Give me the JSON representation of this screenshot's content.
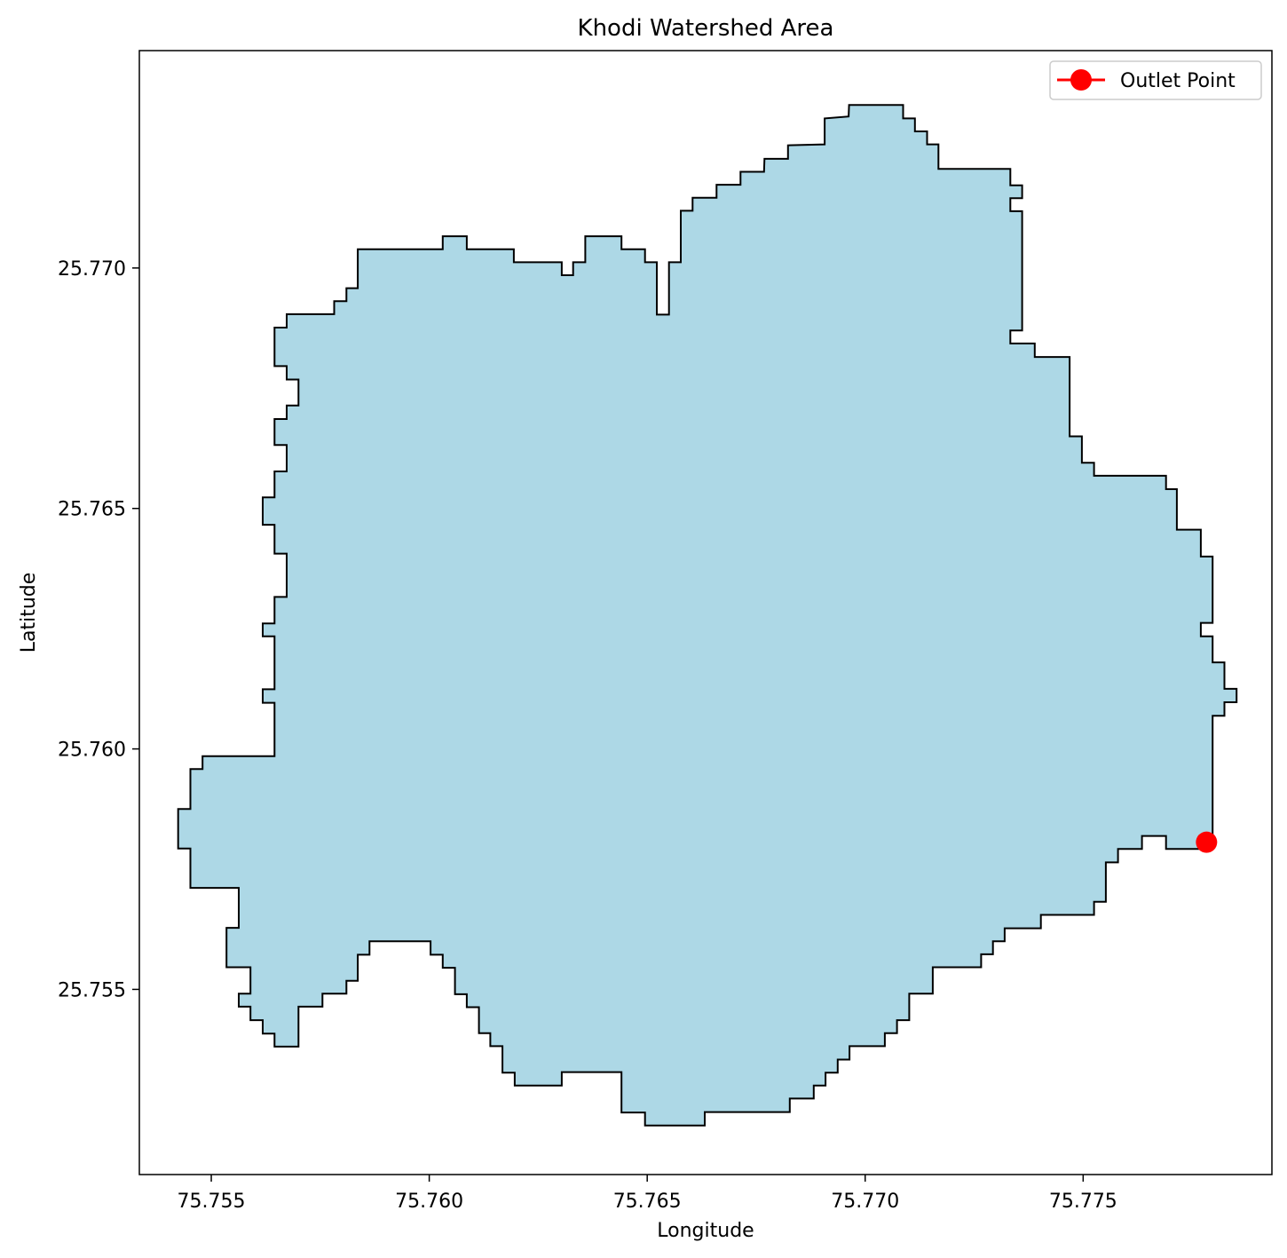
{
  "chart_data": {
    "type": "map",
    "title": "Khodi Watershed Area",
    "xlabel": "Longitude",
    "ylabel": "Latitude",
    "xlim": [
      75.75335,
      75.77933
    ],
    "ylim": [
      25.75115,
      25.77452
    ],
    "xticks": [
      75.755,
      75.76,
      75.765,
      75.77,
      75.775
    ],
    "xtick_labels": [
      "75.755",
      "75.760",
      "75.765",
      "75.770",
      "75.775"
    ],
    "yticks": [
      25.755,
      25.76,
      25.765,
      25.77
    ],
    "ytick_labels": [
      "25.755",
      "25.760",
      "25.765",
      "25.770"
    ],
    "grid": false,
    "legend": {
      "placement": "top-right",
      "entries": [
        {
          "label": "Outlet Point",
          "color": "#ff0000",
          "marker": "circle"
        }
      ]
    },
    "watershed": {
      "fill": "#add8e6",
      "edge": "#000000"
    },
    "outlet_point": {
      "label": "Outlet Point",
      "lon": 75.77783,
      "lat": 25.75806,
      "color": "#ff0000"
    },
    "boundary": [
      [
        75.76963,
        25.77339
      ],
      [
        75.76962,
        25.77315
      ],
      [
        75.76907,
        25.77311
      ],
      [
        75.76907,
        25.77257
      ],
      [
        75.76823,
        25.77255
      ],
      [
        75.76823,
        25.77227
      ],
      [
        75.76769,
        25.77227
      ],
      [
        75.76768,
        25.772
      ],
      [
        75.76714,
        25.772
      ],
      [
        75.76714,
        25.77173
      ],
      [
        75.76659,
        25.77173
      ],
      [
        75.76659,
        25.77146
      ],
      [
        75.76604,
        25.77146
      ],
      [
        75.76604,
        25.77119
      ],
      [
        75.76577,
        25.77119
      ],
      [
        75.76577,
        25.77012
      ],
      [
        75.7655,
        25.77012
      ],
      [
        75.7655,
        25.76903
      ],
      [
        75.76522,
        25.76903
      ],
      [
        75.76522,
        25.77012
      ],
      [
        75.76495,
        25.77012
      ],
      [
        75.76495,
        25.77039
      ],
      [
        75.76441,
        25.77039
      ],
      [
        75.76441,
        25.77066
      ],
      [
        75.76358,
        25.77066
      ],
      [
        75.76358,
        25.77012
      ],
      [
        75.7633,
        25.77012
      ],
      [
        75.7633,
        25.76985
      ],
      [
        75.76304,
        25.76985
      ],
      [
        75.76304,
        25.77012
      ],
      [
        75.76194,
        25.77012
      ],
      [
        75.76194,
        25.77039
      ],
      [
        75.76086,
        25.77039
      ],
      [
        75.76086,
        25.77066
      ],
      [
        75.76031,
        25.77066
      ],
      [
        75.76031,
        25.77039
      ],
      [
        75.75836,
        25.77039
      ],
      [
        75.75836,
        25.76958
      ],
      [
        75.7581,
        25.76958
      ],
      [
        75.7581,
        25.76931
      ],
      [
        75.75782,
        25.76931
      ],
      [
        75.75782,
        25.76904
      ],
      [
        75.75673,
        25.76904
      ],
      [
        75.75673,
        25.76876
      ],
      [
        75.75645,
        25.76876
      ],
      [
        75.75645,
        25.76796
      ],
      [
        75.75673,
        25.76796
      ],
      [
        75.75673,
        25.76768
      ],
      [
        75.757,
        25.76768
      ],
      [
        75.757,
        25.76714
      ],
      [
        75.75673,
        25.76714
      ],
      [
        75.75673,
        25.76686
      ],
      [
        75.75645,
        25.76686
      ],
      [
        75.75645,
        25.76632
      ],
      [
        75.75673,
        25.76632
      ],
      [
        75.75673,
        25.76577
      ],
      [
        75.75645,
        25.76577
      ],
      [
        75.75645,
        25.76523
      ],
      [
        75.75618,
        25.76523
      ],
      [
        75.75618,
        25.76466
      ],
      [
        75.75645,
        25.76466
      ],
      [
        75.75645,
        25.76406
      ],
      [
        75.75673,
        25.76406
      ],
      [
        75.75673,
        25.76316
      ],
      [
        75.75645,
        25.76316
      ],
      [
        75.75645,
        25.76261
      ],
      [
        75.75618,
        25.76261
      ],
      [
        75.75618,
        25.76234
      ],
      [
        75.75645,
        25.76234
      ],
      [
        75.75645,
        25.76124
      ],
      [
        75.75618,
        25.76124
      ],
      [
        75.75618,
        25.76096
      ],
      [
        75.75645,
        25.76096
      ],
      [
        75.75645,
        25.75985
      ],
      [
        75.7548,
        25.75985
      ],
      [
        75.7548,
        25.75958
      ],
      [
        75.75452,
        25.75958
      ],
      [
        75.75452,
        25.75875
      ],
      [
        75.75424,
        25.75875
      ],
      [
        75.75424,
        25.75793
      ],
      [
        75.75452,
        25.75793
      ],
      [
        75.75452,
        25.75711
      ],
      [
        75.75563,
        25.75711
      ],
      [
        75.75563,
        25.75628
      ],
      [
        75.75535,
        25.75628
      ],
      [
        75.75535,
        25.75546
      ],
      [
        75.7559,
        25.75546
      ],
      [
        75.7559,
        25.75491
      ],
      [
        75.75563,
        25.75491
      ],
      [
        75.75563,
        25.75464
      ],
      [
        75.7559,
        25.75464
      ],
      [
        75.7559,
        25.75436
      ],
      [
        75.75618,
        25.75436
      ],
      [
        75.75618,
        25.75408
      ],
      [
        75.75645,
        25.75408
      ],
      [
        75.75645,
        25.75381
      ],
      [
        75.757,
        25.75381
      ],
      [
        75.757,
        25.75464
      ],
      [
        75.75755,
        25.75464
      ],
      [
        75.75755,
        25.75491
      ],
      [
        75.7581,
        25.75491
      ],
      [
        75.7581,
        25.75518
      ],
      [
        75.75836,
        25.75518
      ],
      [
        75.75836,
        25.75572
      ],
      [
        75.75863,
        25.75572
      ],
      [
        75.75863,
        25.756
      ],
      [
        75.76003,
        25.756
      ],
      [
        75.76003,
        25.75572
      ],
      [
        75.76031,
        25.75572
      ],
      [
        75.76031,
        25.75545
      ],
      [
        75.76059,
        25.75545
      ],
      [
        75.76059,
        25.7549
      ],
      [
        75.76086,
        25.7549
      ],
      [
        75.76086,
        25.75463
      ],
      [
        75.76114,
        25.75463
      ],
      [
        75.76114,
        25.75409
      ],
      [
        75.7614,
        25.75409
      ],
      [
        75.7614,
        25.75382
      ],
      [
        75.76168,
        25.75382
      ],
      [
        75.76168,
        25.75327
      ],
      [
        75.76196,
        25.75327
      ],
      [
        75.76196,
        25.753
      ],
      [
        75.76304,
        25.753
      ],
      [
        75.76304,
        25.75328
      ],
      [
        75.76441,
        25.75328
      ],
      [
        75.76441,
        25.75244
      ],
      [
        75.76495,
        25.75244
      ],
      [
        75.76495,
        25.75217
      ],
      [
        75.76632,
        25.75217
      ],
      [
        75.76632,
        25.75245
      ],
      [
        75.76827,
        25.75245
      ],
      [
        75.76827,
        25.75273
      ],
      [
        75.76882,
        25.75273
      ],
      [
        75.76882,
        25.753
      ],
      [
        75.76909,
        25.753
      ],
      [
        75.76909,
        25.75327
      ],
      [
        75.76937,
        25.75327
      ],
      [
        75.76937,
        25.75354
      ],
      [
        75.76964,
        25.75354
      ],
      [
        75.76964,
        25.75382
      ],
      [
        75.77045,
        25.75382
      ],
      [
        75.77045,
        25.75409
      ],
      [
        75.77073,
        25.75409
      ],
      [
        75.77073,
        25.75436
      ],
      [
        75.77101,
        25.75436
      ],
      [
        75.77101,
        25.75491
      ],
      [
        75.77155,
        25.75491
      ],
      [
        75.77155,
        25.75546
      ],
      [
        75.77266,
        25.75546
      ],
      [
        75.77266,
        25.75573
      ],
      [
        75.77293,
        25.75573
      ],
      [
        75.77293,
        25.756
      ],
      [
        75.7732,
        25.756
      ],
      [
        75.7732,
        25.75627
      ],
      [
        75.77403,
        25.75627
      ],
      [
        75.77403,
        25.75655
      ],
      [
        75.77525,
        25.75655
      ],
      [
        75.77525,
        25.75682
      ],
      [
        75.77552,
        25.75682
      ],
      [
        75.77552,
        25.75764
      ],
      [
        75.7758,
        25.75764
      ],
      [
        75.7758,
        25.75792
      ],
      [
        75.77635,
        25.75792
      ],
      [
        75.77635,
        25.75819
      ],
      [
        75.7769,
        25.75819
      ],
      [
        75.7769,
        25.75792
      ],
      [
        75.77783,
        25.75792
      ],
      [
        75.77783,
        25.75806
      ],
      [
        75.77797,
        25.75806
      ],
      [
        75.77797,
        25.76069
      ],
      [
        75.77824,
        25.76069
      ],
      [
        75.77824,
        25.76097
      ],
      [
        75.77852,
        25.76097
      ],
      [
        75.77852,
        25.76125
      ],
      [
        75.77824,
        25.76125
      ],
      [
        75.77824,
        25.7618
      ],
      [
        75.77797,
        25.7618
      ],
      [
        75.77797,
        25.76234
      ],
      [
        75.7777,
        25.76234
      ],
      [
        75.7777,
        25.76262
      ],
      [
        75.77797,
        25.76262
      ],
      [
        75.77797,
        25.764
      ],
      [
        75.7777,
        25.764
      ],
      [
        75.7777,
        25.76456
      ],
      [
        75.77715,
        25.76456
      ],
      [
        75.77715,
        25.7654
      ],
      [
        75.7769,
        25.7654
      ],
      [
        75.7769,
        25.76568
      ],
      [
        75.77525,
        25.76568
      ],
      [
        75.77525,
        25.76595
      ],
      [
        75.77497,
        25.76595
      ],
      [
        75.77497,
        25.7665
      ],
      [
        75.77469,
        25.7665
      ],
      [
        75.77469,
        25.76815
      ],
      [
        75.77389,
        25.76815
      ],
      [
        75.77389,
        25.76843
      ],
      [
        75.77333,
        25.76843
      ],
      [
        75.77333,
        25.7687
      ],
      [
        75.7736,
        25.7687
      ],
      [
        75.7736,
        25.77118
      ],
      [
        75.77333,
        25.77118
      ],
      [
        75.77333,
        25.77145
      ],
      [
        75.7736,
        25.77145
      ],
      [
        75.7736,
        25.77172
      ],
      [
        75.77333,
        25.77172
      ],
      [
        75.77333,
        25.77206
      ],
      [
        75.77168,
        25.77206
      ],
      [
        75.77168,
        25.77257
      ],
      [
        75.77142,
        25.77257
      ],
      [
        75.77142,
        25.77284
      ],
      [
        75.77114,
        25.77284
      ],
      [
        75.77114,
        25.77311
      ],
      [
        75.77087,
        25.77311
      ],
      [
        75.77087,
        25.77339
      ]
    ]
  }
}
